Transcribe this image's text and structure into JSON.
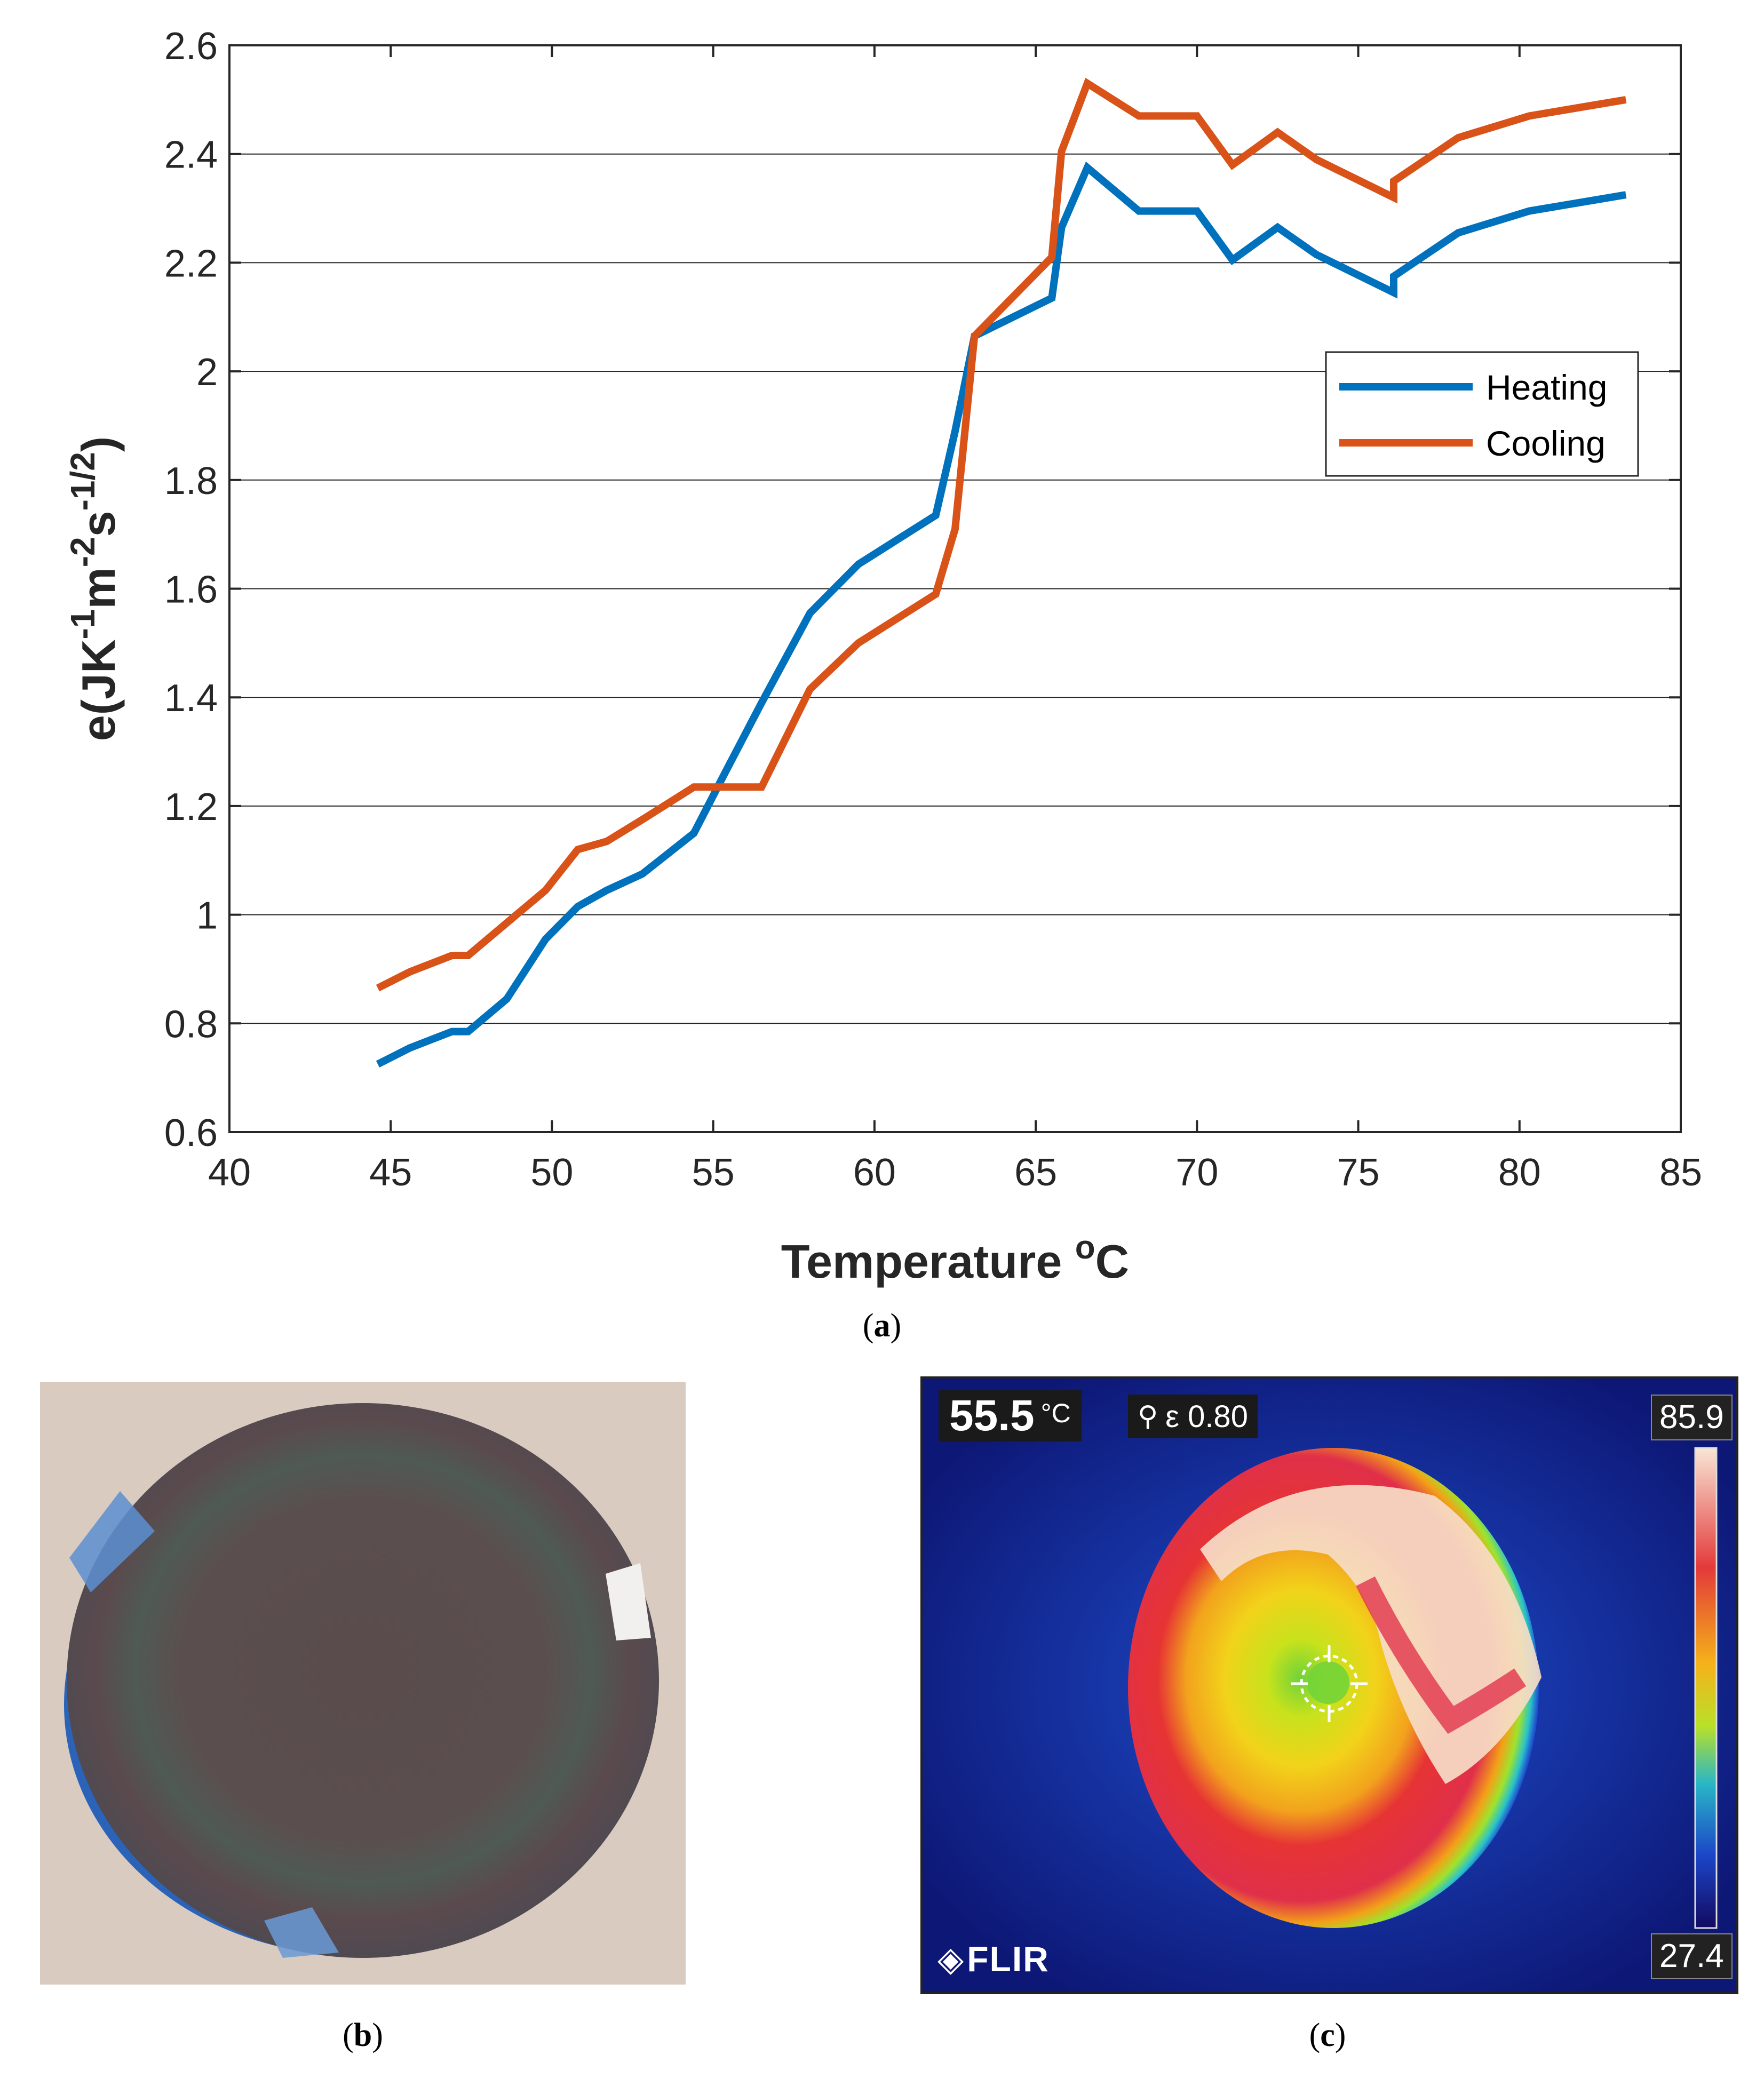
{
  "chart_data": {
    "type": "line",
    "title": "",
    "xlabel": "Temperature",
    "xlabel_unit_super": "o",
    "xlabel_unit": "C",
    "ylabel": "e(JK^-1m^-2s^-1/2)",
    "ylabel_parts": [
      {
        "t": "e(JK",
        "sup": false
      },
      {
        "t": "-1",
        "sup": true
      },
      {
        "t": "m",
        "sup": false
      },
      {
        "t": "-2",
        "sup": true
      },
      {
        "t": "s",
        "sup": false
      },
      {
        "t": "-1/2",
        "sup": true
      },
      {
        "t": ")",
        "sup": false
      }
    ],
    "xlim": [
      40,
      85
    ],
    "ylim": [
      0.6,
      2.6
    ],
    "xticks": [
      "40",
      "45",
      "50",
      "55",
      "60",
      "65",
      "70",
      "75",
      "80",
      "85"
    ],
    "xtick_values": [
      40,
      45,
      50,
      55,
      60,
      65,
      70,
      75,
      80,
      85
    ],
    "yticks": [
      "0.6",
      "0.8",
      "1",
      "1.2",
      "1.4",
      "1.6",
      "1.8",
      "2",
      "2.2",
      "2.4",
      "2.6"
    ],
    "ytick_values": [
      0.6,
      0.8,
      1.0,
      1.2,
      1.4,
      1.6,
      1.8,
      2.0,
      2.2,
      2.4,
      2.6
    ],
    "grid": "horizontal",
    "legend_position": "upper-right",
    "series": [
      {
        "name": "Heating",
        "color": "#0072BD",
        "x": [
          44.6,
          45.6,
          46.9,
          47.4,
          48.6,
          49.8,
          50.8,
          51.7,
          52.8,
          54.4,
          55.4,
          56.5,
          58.0,
          59.5,
          60.7,
          61.9,
          62.5,
          63.1,
          65.5,
          65.8,
          66.6,
          68.2,
          70.0,
          71.1,
          72.5,
          73.7,
          76.1,
          76.1,
          78.1,
          80.3,
          83.3
        ],
        "y": [
          0.725,
          0.755,
          0.785,
          0.785,
          0.845,
          0.955,
          1.015,
          1.045,
          1.075,
          1.15,
          1.265,
          1.39,
          1.555,
          1.645,
          1.69,
          1.735,
          1.89,
          2.065,
          2.135,
          2.265,
          2.375,
          2.295,
          2.295,
          2.205,
          2.265,
          2.215,
          2.145,
          2.175,
          2.255,
          2.295,
          2.325
        ]
      },
      {
        "name": "Cooling",
        "color": "#D95319",
        "x": [
          44.6,
          45.6,
          46.9,
          47.4,
          48.6,
          49.8,
          50.8,
          51.7,
          52.8,
          54.4,
          55.4,
          56.5,
          58.0,
          59.5,
          60.7,
          61.9,
          62.5,
          63.1,
          65.5,
          65.8,
          66.6,
          68.2,
          70.0,
          71.1,
          72.5,
          73.7,
          76.1,
          76.1,
          78.1,
          80.3,
          83.3
        ],
        "y": [
          0.865,
          0.895,
          0.925,
          0.925,
          0.985,
          1.045,
          1.12,
          1.135,
          1.175,
          1.235,
          1.235,
          1.235,
          1.415,
          1.5,
          1.545,
          1.59,
          1.71,
          2.065,
          2.21,
          2.405,
          2.53,
          2.47,
          2.47,
          2.38,
          2.44,
          2.39,
          2.32,
          2.35,
          2.43,
          2.47,
          2.5
        ]
      }
    ]
  },
  "captions": {
    "a_open": "(",
    "a_letter": "a",
    "a_close": ")",
    "b_open": "(",
    "b_letter": "b",
    "b_close": ")",
    "c_open": "(",
    "c_letter": "c",
    "c_close": ")"
  },
  "thermal": {
    "spot_temp": "55.5",
    "spot_unit": "°C",
    "emissivity_label": "ε 0.80",
    "scale_max": "85.9",
    "scale_min": "27.4",
    "brand": "FLIR"
  }
}
